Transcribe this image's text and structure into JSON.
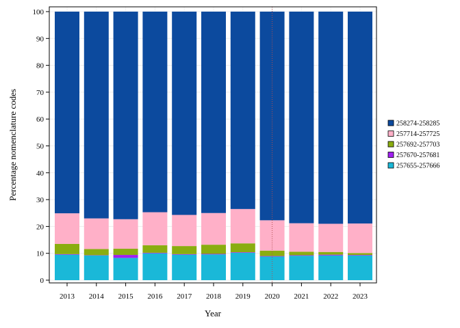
{
  "chart_data": {
    "type": "bar",
    "stacked": true,
    "title": "",
    "xlabel": "Year",
    "ylabel": "Percentage nomenclature codes",
    "ylim": [
      0,
      100
    ],
    "yticks": [
      0,
      10,
      20,
      30,
      40,
      50,
      60,
      70,
      80,
      90,
      100
    ],
    "categories": [
      "2013",
      "2014",
      "2015",
      "2016",
      "2017",
      "2018",
      "2019",
      "2020",
      "2021",
      "2022",
      "2023"
    ],
    "marker_category": "2020",
    "grid": true,
    "legend_position": "right",
    "series": [
      {
        "name": "257655-257666",
        "color": "#1ab8d8",
        "values": [
          9.5,
          9.2,
          8.3,
          10.0,
          9.5,
          9.6,
          10.2,
          8.8,
          9.1,
          9.2,
          9.2
        ]
      },
      {
        "name": "257670-257681",
        "color": "#a020f0",
        "values": [
          0.2,
          0.1,
          1.1,
          0.2,
          0.2,
          0.2,
          0.2,
          0.2,
          0.2,
          0.3,
          0.2
        ]
      },
      {
        "name": "257692-257703",
        "color": "#8aad10",
        "values": [
          3.8,
          2.3,
          2.3,
          2.8,
          3.0,
          3.4,
          3.3,
          2.0,
          1.3,
          1.0,
          0.7
        ]
      },
      {
        "name": "257714-257725",
        "color": "#ffb0c8",
        "values": [
          11.4,
          11.4,
          11.0,
          12.3,
          11.6,
          11.8,
          12.8,
          11.3,
          10.6,
          10.5,
          11.0
        ]
      },
      {
        "name": "258274-258285",
        "color": "#0c4a9e",
        "values": [
          75.1,
          77.0,
          77.3,
          74.7,
          75.7,
          75.0,
          73.5,
          77.7,
          78.8,
          79.0,
          78.9
        ]
      }
    ]
  }
}
